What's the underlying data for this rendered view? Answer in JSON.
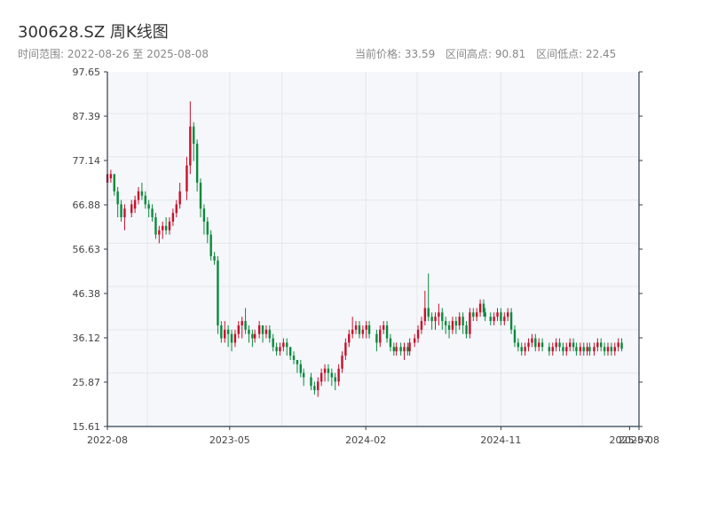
{
  "header": {
    "title": "300628.SZ 周K线图",
    "range_text": "时间范围: 2022-08-26 至 2025-08-08",
    "current_price": "当前价格: 33.59",
    "range_high": "区间高点: 90.81",
    "range_low": "区间低点: 22.45"
  },
  "colors": {
    "up": "#c8102e",
    "down": "#0a8a3c",
    "plot_bg": "#f5f7fa",
    "grid": "#e3e7ec",
    "axis": "#2f3e4e"
  },
  "chart_data": {
    "type": "candlestick",
    "ylim": [
      15.61,
      97.65
    ],
    "ytick_labels": [
      "97.65",
      "87.39",
      "77.14",
      "66.88",
      "56.63",
      "46.38",
      "36.12",
      "25.87",
      "15.61"
    ],
    "x_dates": [
      "2022-08-26",
      "2022-09-02",
      "2022-09-09",
      "2022-09-16",
      "2022-09-23",
      "2022-09-30",
      "2022-10-14",
      "2022-10-21",
      "2022-10-28",
      "2022-11-04",
      "2022-11-11",
      "2022-11-18",
      "2022-11-25",
      "2022-12-02",
      "2022-12-09",
      "2022-12-16",
      "2022-12-23",
      "2022-12-30",
      "2023-01-06",
      "2023-01-13",
      "2023-01-20",
      "2023-02-03",
      "2023-02-10",
      "2023-02-17",
      "2023-02-24",
      "2023-03-03",
      "2023-03-10",
      "2023-03-17",
      "2023-03-24",
      "2023-03-31",
      "2023-04-07",
      "2023-04-14",
      "2023-04-21",
      "2023-04-28",
      "2023-05-05",
      "2023-05-12",
      "2023-05-19",
      "2023-05-26",
      "2023-06-02",
      "2023-06-09",
      "2023-06-16",
      "2023-06-21",
      "2023-06-30",
      "2023-07-07",
      "2023-07-14",
      "2023-07-21",
      "2023-07-28",
      "2023-08-04",
      "2023-08-11",
      "2023-08-18",
      "2023-08-25",
      "2023-09-01",
      "2023-09-08",
      "2023-09-15",
      "2023-09-22",
      "2023-09-28",
      "2023-10-13",
      "2023-10-20",
      "2023-10-27",
      "2023-11-03",
      "2023-11-10",
      "2023-11-17",
      "2023-11-24",
      "2023-12-01",
      "2023-12-08",
      "2023-12-15",
      "2023-12-22",
      "2023-12-29",
      "2024-01-05",
      "2024-01-12",
      "2024-01-19",
      "2024-01-26",
      "2024-02-02",
      "2024-02-08",
      "2024-02-23",
      "2024-03-01",
      "2024-03-08",
      "2024-03-15",
      "2024-03-22",
      "2024-03-29",
      "2024-04-03",
      "2024-04-12",
      "2024-04-19",
      "2024-04-26",
      "2024-04-30",
      "2024-05-10",
      "2024-05-17",
      "2024-05-24",
      "2024-05-31",
      "2024-06-07",
      "2024-06-14",
      "2024-06-21",
      "2024-06-28",
      "2024-07-05",
      "2024-07-12",
      "2024-07-19",
      "2024-07-26",
      "2024-08-02",
      "2024-08-09",
      "2024-08-16",
      "2024-08-23",
      "2024-08-30",
      "2024-09-06",
      "2024-09-13",
      "2024-09-20",
      "2024-09-27",
      "2024-09-30",
      "2024-10-11",
      "2024-10-18",
      "2024-10-25",
      "2024-11-01",
      "2024-11-08",
      "2024-11-15",
      "2024-11-22",
      "2024-11-29",
      "2024-12-06",
      "2024-12-13",
      "2024-12-20",
      "2024-12-27",
      "2025-01-03",
      "2025-01-10",
      "2025-01-17",
      "2025-01-24",
      "2025-02-07",
      "2025-02-14",
      "2025-02-21",
      "2025-02-28",
      "2025-03-07",
      "2025-03-14",
      "2025-03-21",
      "2025-03-28",
      "2025-04-03",
      "2025-04-11",
      "2025-04-18",
      "2025-04-25",
      "2025-04-30",
      "2025-05-09",
      "2025-05-16",
      "2025-05-23",
      "2025-05-30",
      "2025-06-06",
      "2025-06-13",
      "2025-06-20",
      "2025-06-27",
      "2025-07-04",
      "2025-07-11",
      "2025-07-18",
      "2025-07-25",
      "2025-08-01",
      "2025-08-08"
    ],
    "xtick_labels": [
      "2022-08",
      "2023-05",
      "2024-02",
      "2024-11",
      "2025-07",
      "2025-08"
    ],
    "xtick_dates": [
      "2022-08-26",
      "2023-05-01",
      "2024-02-01",
      "2024-11-01",
      "2025-07-20",
      "2025-08-08"
    ],
    "candles": [
      [
        72,
        74,
        75,
        71
      ],
      [
        73,
        74,
        75,
        72
      ],
      [
        74,
        70,
        74,
        69
      ],
      [
        70,
        67,
        71,
        64
      ],
      [
        67,
        64,
        68,
        63
      ],
      [
        64,
        66,
        67,
        61
      ],
      [
        65,
        67,
        68,
        64
      ],
      [
        66,
        68,
        69,
        65
      ],
      [
        68,
        70,
        71,
        67
      ],
      [
        70,
        69,
        72,
        68
      ],
      [
        69,
        67,
        70,
        66
      ],
      [
        67,
        66,
        68,
        64
      ],
      [
        66,
        64,
        67,
        63
      ],
      [
        64,
        60,
        65,
        59
      ],
      [
        60,
        61,
        62,
        58
      ],
      [
        61,
        62,
        63,
        59
      ],
      [
        62,
        61,
        64,
        60
      ],
      [
        61,
        63,
        64,
        60
      ],
      [
        63,
        65,
        66,
        62
      ],
      [
        65,
        67,
        68,
        64
      ],
      [
        67,
        70,
        72,
        66
      ],
      [
        70,
        76,
        78,
        68
      ],
      [
        76,
        85,
        90.81,
        74
      ],
      [
        85,
        81,
        86,
        77
      ],
      [
        81,
        72,
        82,
        70
      ],
      [
        72,
        66,
        73,
        64
      ],
      [
        66,
        63,
        67,
        60
      ],
      [
        63,
        60,
        64,
        58
      ],
      [
        60,
        55,
        61,
        54
      ],
      [
        55,
        54,
        56,
        53
      ],
      [
        54,
        39,
        55,
        37
      ],
      [
        39,
        36,
        40,
        35
      ],
      [
        36,
        38,
        40,
        35
      ],
      [
        38,
        37,
        39,
        34
      ],
      [
        37,
        35,
        38,
        33
      ],
      [
        35,
        37,
        38,
        34
      ],
      [
        37,
        39,
        40,
        36
      ],
      [
        39,
        40,
        41,
        36
      ],
      [
        40,
        38,
        43,
        37
      ],
      [
        38,
        37,
        39,
        35
      ],
      [
        37,
        36,
        38,
        34
      ],
      [
        36,
        37,
        38,
        35
      ],
      [
        37,
        39,
        40,
        36
      ],
      [
        39,
        37,
        39,
        35
      ],
      [
        37,
        38,
        39,
        36
      ],
      [
        38,
        36,
        39,
        35
      ],
      [
        36,
        34,
        37,
        33
      ],
      [
        34,
        33,
        35,
        32
      ],
      [
        33,
        34,
        35,
        32
      ],
      [
        34,
        35,
        36,
        33
      ],
      [
        35,
        34,
        36,
        32
      ],
      [
        34,
        32,
        34,
        31
      ],
      [
        32,
        31,
        33,
        30
      ],
      [
        31,
        30,
        31,
        28
      ],
      [
        30,
        28,
        31,
        27
      ],
      [
        28,
        27,
        29,
        25
      ],
      [
        27,
        25,
        28,
        24
      ],
      [
        25,
        24,
        26,
        23
      ],
      [
        24,
        26,
        27,
        22.45
      ],
      [
        26,
        28,
        29,
        25
      ],
      [
        28,
        29,
        30,
        26
      ],
      [
        29,
        28,
        30,
        26
      ],
      [
        28,
        27,
        29,
        25
      ],
      [
        27,
        26,
        28,
        24
      ],
      [
        26,
        29,
        30,
        25
      ],
      [
        29,
        32,
        33,
        28
      ],
      [
        32,
        35,
        36,
        31
      ],
      [
        35,
        37,
        38,
        34
      ],
      [
        37,
        38,
        41,
        36
      ],
      [
        38,
        39,
        40,
        37
      ],
      [
        39,
        37,
        40,
        36
      ],
      [
        37,
        38,
        39,
        36
      ],
      [
        38,
        39,
        40,
        36
      ],
      [
        39,
        37,
        40,
        36
      ],
      [
        37,
        35,
        38,
        33
      ],
      [
        35,
        38,
        39,
        34
      ],
      [
        38,
        39,
        40,
        37
      ],
      [
        39,
        36,
        40,
        35
      ],
      [
        36,
        34,
        37,
        33
      ],
      [
        34,
        33,
        35,
        32
      ],
      [
        33,
        34,
        35,
        32
      ],
      [
        34,
        33,
        35,
        32
      ],
      [
        33,
        34,
        35,
        31
      ],
      [
        34,
        33,
        35,
        32
      ],
      [
        33,
        35,
        36,
        32
      ],
      [
        35,
        36,
        37,
        34
      ],
      [
        36,
        38,
        39,
        35
      ],
      [
        38,
        40,
        41,
        37
      ],
      [
        40,
        43,
        47,
        39
      ],
      [
        43,
        41,
        51,
        40
      ],
      [
        41,
        40,
        42,
        38
      ],
      [
        40,
        41,
        42,
        38
      ],
      [
        41,
        42,
        44,
        39
      ],
      [
        42,
        40,
        43,
        38
      ],
      [
        40,
        39,
        41,
        37
      ],
      [
        39,
        38,
        40,
        36
      ],
      [
        38,
        40,
        41,
        37
      ],
      [
        40,
        39,
        41,
        37
      ],
      [
        39,
        41,
        42,
        38
      ],
      [
        41,
        39,
        42,
        37
      ],
      [
        39,
        37,
        40,
        36
      ],
      [
        37,
        42,
        43,
        36
      ],
      [
        42,
        41,
        43,
        40
      ],
      [
        41,
        42,
        43,
        40
      ],
      [
        42,
        44,
        45,
        41
      ],
      [
        44,
        42,
        45,
        41
      ],
      [
        42,
        41,
        43,
        40
      ],
      [
        41,
        40,
        42,
        39
      ],
      [
        40,
        41,
        42,
        39
      ],
      [
        41,
        42,
        43,
        40
      ],
      [
        42,
        40,
        43,
        39
      ],
      [
        40,
        41,
        42,
        39
      ],
      [
        41,
        42,
        43,
        40
      ],
      [
        42,
        38,
        43,
        37
      ],
      [
        38,
        35,
        39,
        34
      ],
      [
        35,
        34,
        36,
        33
      ],
      [
        34,
        33,
        35,
        32
      ],
      [
        33,
        34,
        35,
        32
      ],
      [
        34,
        35,
        36,
        33
      ],
      [
        35,
        36,
        37,
        34
      ],
      [
        36,
        34,
        37,
        33
      ],
      [
        34,
        35,
        36,
        33
      ],
      [
        35,
        34,
        36,
        33
      ],
      [
        34,
        33,
        35,
        32
      ],
      [
        33,
        34,
        35,
        32
      ],
      [
        34,
        35,
        36,
        33
      ],
      [
        35,
        34,
        36,
        33
      ],
      [
        34,
        33,
        35,
        32
      ],
      [
        33,
        34,
        35,
        32
      ],
      [
        34,
        35,
        36,
        33
      ],
      [
        35,
        34,
        36,
        33
      ],
      [
        34,
        33,
        35,
        32
      ],
      [
        33,
        34,
        35,
        32
      ],
      [
        34,
        33,
        35,
        32
      ],
      [
        33,
        34,
        35,
        32
      ],
      [
        34,
        33,
        35,
        32
      ],
      [
        33,
        34,
        35,
        32
      ],
      [
        34,
        35,
        36,
        33
      ],
      [
        35,
        34,
        36,
        33
      ],
      [
        34,
        33,
        35,
        32
      ],
      [
        33,
        34,
        35,
        32
      ],
      [
        34,
        33,
        35,
        32
      ],
      [
        33,
        34,
        35,
        32
      ],
      [
        34,
        35,
        36,
        33
      ],
      [
        35,
        33.59,
        36,
        33
      ]
    ]
  }
}
